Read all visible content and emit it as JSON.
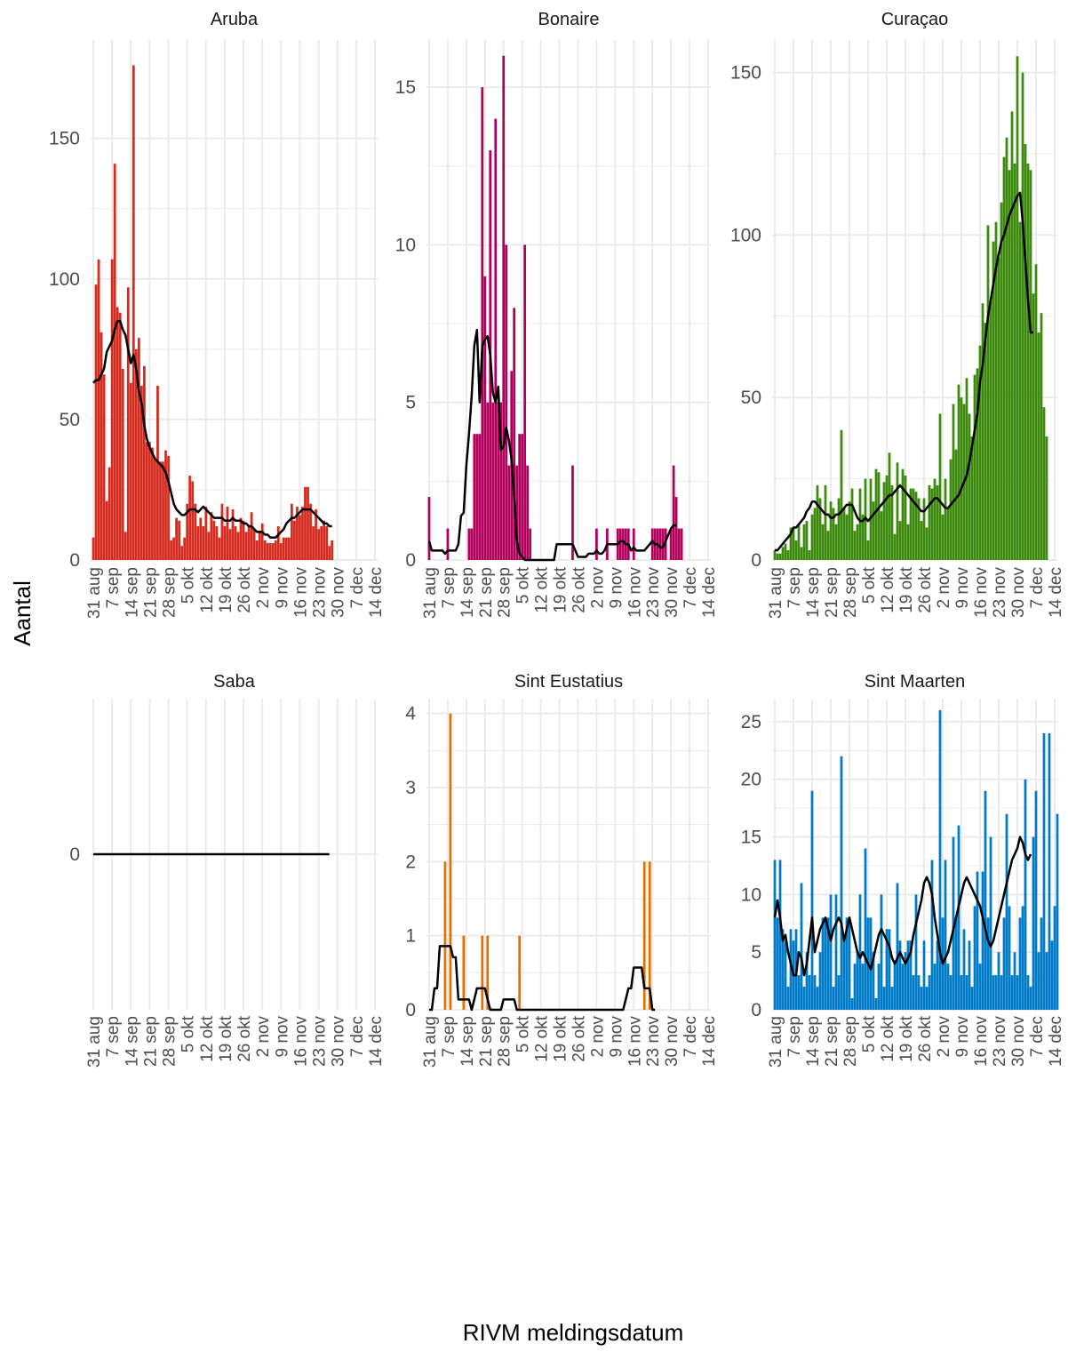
{
  "chart_data": {
    "type": "bar",
    "xlabel": "RIVM meldingsdatum",
    "ylabel": "Aantal",
    "x_ticks": [
      "31 aug",
      "7 sep",
      "14 sep",
      "21 sep",
      "28 sep",
      "5 okt",
      "12 okt",
      "19 okt",
      "26 okt",
      "2 nov",
      "9 nov",
      "16 nov",
      "23 nov",
      "30 nov",
      "7 dec",
      "14 dec"
    ],
    "x_start": "2020-08-31",
    "line_color": "#000000",
    "panels": [
      {
        "name": "Aruba",
        "color": "#d52b1e",
        "ylim": [
          0,
          185
        ],
        "yticks": [
          0,
          50,
          100,
          150
        ],
        "values": [
          8,
          98,
          107,
          81,
          66,
          21,
          33,
          107,
          141,
          90,
          88,
          68,
          10,
          97,
          63,
          176,
          75,
          79,
          62,
          69,
          42,
          42,
          40,
          36,
          62,
          35,
          35,
          39,
          37,
          7,
          8,
          15,
          14,
          5,
          8,
          20,
          30,
          28,
          20,
          12,
          15,
          12,
          19,
          10,
          17,
          14,
          12,
          8,
          20,
          12,
          19,
          11,
          18,
          12,
          10,
          15,
          14,
          10,
          12,
          17,
          11,
          7,
          10,
          13,
          7,
          6,
          6,
          6,
          7,
          12,
          6,
          8,
          8,
          8,
          20,
          14,
          19,
          16,
          19,
          26,
          26,
          20,
          12,
          18,
          11,
          12,
          14,
          12,
          5,
          7
        ],
        "trend": [
          63,
          64,
          64,
          66,
          68,
          74,
          76,
          78,
          82,
          85,
          85,
          82,
          80,
          75,
          70,
          73,
          68,
          60,
          56,
          48,
          43,
          40,
          38,
          36,
          35,
          34,
          33,
          31,
          28,
          24,
          20,
          18,
          17,
          16,
          16,
          17,
          18,
          18,
          18,
          17,
          18,
          19,
          18,
          17,
          16,
          15,
          15,
          15,
          15,
          14,
          14,
          14,
          15,
          14,
          14,
          14,
          13,
          13,
          12,
          12,
          11,
          10,
          10,
          10,
          9,
          9,
          8,
          8,
          8,
          9,
          10,
          11,
          13,
          14,
          15,
          15,
          16,
          17,
          18,
          18,
          18,
          18,
          17,
          16,
          15,
          14,
          13,
          13,
          12,
          12
        ]
      },
      {
        "name": "Bonaire",
        "color": "#b0005c",
        "ylim": [
          0,
          16.5
        ],
        "yticks": [
          0,
          5,
          10,
          15
        ],
        "values": [
          2,
          0,
          0,
          0,
          0,
          0,
          0,
          1,
          0,
          0,
          0,
          0,
          0,
          0,
          0,
          1,
          1,
          4,
          4,
          4,
          15,
          9,
          5,
          13,
          5,
          14,
          5,
          5,
          16,
          10,
          3,
          6,
          8,
          3,
          4,
          4,
          10,
          3,
          1,
          0,
          0,
          0,
          0,
          0,
          0,
          0,
          0,
          0,
          0,
          0,
          0,
          0,
          0,
          0,
          3,
          0,
          0,
          0,
          0,
          0,
          0,
          0,
          0,
          1,
          0,
          0,
          0,
          1,
          0,
          0,
          0,
          1,
          1,
          1,
          1,
          1,
          0,
          1,
          0,
          0,
          0,
          0,
          0,
          0,
          1,
          1,
          1,
          1,
          1,
          1,
          0,
          1,
          3,
          2,
          1,
          1
        ],
        "trend": [
          0.6,
          0.3,
          0.3,
          0.3,
          0.3,
          0.3,
          0.2,
          0.3,
          0.3,
          0.3,
          0.3,
          0.5,
          1.4,
          1.5,
          3.0,
          4.0,
          5.2,
          6.8,
          7.3,
          5.0,
          6.8,
          7.0,
          7.1,
          6.5,
          5.3,
          5.0,
          5.5,
          3.5,
          3.6,
          4.2,
          3.8,
          3.2,
          2.0,
          0.6,
          0.2,
          0.1,
          0,
          0,
          0,
          0,
          0,
          0,
          0,
          0,
          0,
          0,
          0,
          0,
          0.5,
          0.5,
          0.5,
          0.5,
          0.5,
          0.5,
          0.5,
          0.3,
          0.1,
          0.1,
          0.1,
          0.1,
          0.2,
          0.2,
          0.2,
          0.3,
          0.2,
          0.2,
          0.3,
          0.5,
          0.5,
          0.5,
          0.5,
          0.5,
          0.6,
          0.6,
          0.5,
          0.5,
          0.3,
          0.4,
          0.3,
          0.3,
          0.3,
          0.3,
          0.4,
          0.5,
          0.6,
          0.5,
          0.5,
          0.4,
          0.4,
          0.6,
          0.8,
          1.0,
          1.1,
          1.1
        ]
      },
      {
        "name": "Curaçao",
        "color": "#3d8b0e",
        "ylim": [
          0,
          160
        ],
        "yticks": [
          0,
          50,
          100,
          150
        ],
        "values": [
          3,
          2,
          2,
          4,
          5,
          3,
          10,
          10,
          6,
          11,
          4,
          11,
          12,
          3,
          14,
          16,
          23,
          19,
          11,
          23,
          9,
          18,
          16,
          11,
          19,
          40,
          16,
          14,
          18,
          22,
          9,
          11,
          22,
          14,
          25,
          6,
          25,
          18,
          28,
          27,
          15,
          24,
          26,
          33,
          23,
          8,
          30,
          12,
          28,
          26,
          11,
          22,
          22,
          21,
          19,
          12,
          19,
          10,
          23,
          22,
          25,
          23,
          45,
          14,
          25,
          16,
          31,
          48,
          34,
          54,
          50,
          48,
          56,
          45,
          38,
          57,
          59,
          66,
          79,
          73,
          103,
          80,
          98,
          104,
          93,
          110,
          124,
          130,
          120,
          138,
          122,
          155,
          104,
          150,
          128,
          122,
          120,
          82,
          91,
          70,
          76,
          47,
          38
        ],
        "trend": [
          3,
          3,
          4,
          5,
          6,
          7,
          8,
          10,
          10,
          11,
          12,
          13,
          15,
          16,
          18,
          18,
          17,
          16,
          15,
          14,
          14,
          13,
          13,
          14,
          14,
          15,
          16,
          17,
          17,
          17,
          15,
          13,
          12,
          12,
          13,
          12,
          13,
          14,
          15,
          16,
          17,
          18,
          19,
          20,
          20,
          21,
          22,
          23,
          22,
          21,
          20,
          19,
          18,
          17,
          16,
          15,
          15,
          16,
          17,
          18,
          19,
          19,
          18,
          17,
          16,
          16,
          17,
          18,
          19,
          20,
          22,
          24,
          26,
          30,
          35,
          40,
          45,
          55,
          60,
          68,
          75,
          80,
          85,
          90,
          94,
          98,
          100,
          103,
          106,
          108,
          110,
          112,
          113,
          104,
          92,
          80,
          70,
          70
        ]
      },
      {
        "name": "Saba",
        "color": "#f5deb3",
        "ylim": [
          -1,
          1
        ],
        "yticks": [
          0
        ],
        "values": [
          0,
          0,
          0,
          0,
          0,
          0,
          0,
          0,
          0,
          0,
          0,
          0,
          0,
          0,
          0,
          0,
          0,
          0,
          0,
          0,
          0,
          0,
          0,
          0,
          0,
          0,
          0,
          0,
          0,
          0,
          0,
          0,
          0,
          0,
          0,
          0,
          0,
          0,
          0,
          0,
          0,
          0,
          0,
          0,
          0,
          0,
          0,
          0,
          0,
          0,
          0,
          0,
          0,
          0,
          0,
          0,
          0,
          0,
          0,
          0,
          0,
          0,
          0,
          0,
          0,
          0,
          0,
          0,
          0,
          0,
          0,
          0,
          0,
          0,
          0,
          0,
          0,
          0,
          0,
          0,
          0,
          0,
          0,
          0,
          0,
          0,
          0,
          0,
          0,
          0,
          0,
          0
        ],
        "trend": [
          0,
          0,
          0,
          0,
          0,
          0,
          0,
          0,
          0,
          0,
          0,
          0,
          0,
          0,
          0,
          0,
          0,
          0,
          0,
          0,
          0,
          0,
          0,
          0,
          0,
          0,
          0,
          0,
          0,
          0,
          0,
          0,
          0,
          0,
          0,
          0,
          0,
          0,
          0,
          0,
          0,
          0,
          0,
          0,
          0,
          0,
          0,
          0,
          0,
          0,
          0,
          0,
          0,
          0,
          0,
          0,
          0,
          0,
          0,
          0,
          0,
          0,
          0,
          0,
          0,
          0,
          0,
          0,
          0,
          0,
          0,
          0,
          0,
          0,
          0,
          0,
          0,
          0,
          0,
          0,
          0,
          0,
          0,
          0,
          0,
          0,
          0,
          0,
          0
        ]
      },
      {
        "name": "Sint Eustatius",
        "color": "#e17000",
        "ylim": [
          0,
          4.2
        ],
        "yticks": [
          0,
          1,
          2,
          3,
          4
        ],
        "values": [
          0,
          0,
          0,
          0,
          0,
          0,
          2,
          0,
          4,
          0,
          0,
          0,
          0,
          1,
          0,
          0,
          0,
          0,
          0,
          0,
          1,
          0,
          1,
          0,
          0,
          0,
          0,
          0,
          0,
          0,
          0,
          0,
          0,
          0,
          1,
          0,
          0,
          0,
          0,
          0,
          0,
          0,
          0,
          0,
          0,
          0,
          0,
          0,
          0,
          0,
          0,
          0,
          0,
          0,
          0,
          0,
          0,
          0,
          0,
          0,
          0,
          0,
          0,
          0,
          0,
          0,
          0,
          0,
          0,
          0,
          0,
          0,
          0,
          0,
          0,
          0,
          0,
          0,
          0,
          0,
          0,
          2,
          0,
          2,
          0,
          0,
          0,
          0,
          0,
          0
        ],
        "trend": [
          0,
          0,
          0.29,
          0.29,
          0.86,
          0.86,
          0.86,
          0.86,
          0.86,
          0.71,
          0.71,
          0.14,
          0.14,
          0.14,
          0.14,
          0.14,
          0,
          0.14,
          0.29,
          0.29,
          0.29,
          0.29,
          0.14,
          0,
          0,
          0,
          0,
          0,
          0.14,
          0.14,
          0.14,
          0.14,
          0.14,
          0,
          0,
          0,
          0,
          0,
          0,
          0,
          0,
          0,
          0,
          0,
          0,
          0,
          0,
          0,
          0,
          0,
          0,
          0,
          0,
          0,
          0,
          0,
          0,
          0,
          0,
          0,
          0,
          0,
          0,
          0,
          0,
          0,
          0,
          0,
          0,
          0,
          0,
          0,
          0,
          0,
          0.14,
          0.29,
          0.29,
          0.57,
          0.57,
          0.57,
          0.57,
          0.29,
          0.29,
          0.29,
          0,
          0
        ]
      },
      {
        "name": "Sint Maarten",
        "color": "#007bc7",
        "ylim": [
          0,
          27
        ],
        "yticks": [
          0,
          5,
          10,
          15,
          20,
          25
        ],
        "values": [
          13,
          8,
          13,
          7,
          6,
          2,
          7,
          6,
          7,
          3,
          11,
          2,
          5,
          3,
          19,
          3,
          2,
          5,
          8,
          8,
          8,
          10,
          2,
          10,
          3,
          22,
          6,
          8,
          8,
          1,
          4,
          5,
          10,
          4,
          14,
          8,
          8,
          5,
          1,
          4,
          10,
          2,
          7,
          7,
          2,
          4,
          11,
          6,
          4,
          5,
          6,
          6,
          3,
          10,
          3,
          2,
          6,
          2,
          3,
          13,
          4,
          6,
          26,
          8,
          13,
          4,
          3,
          15,
          8,
          16,
          3,
          7,
          3,
          6,
          2,
          9,
          12,
          4,
          12,
          19,
          8,
          15,
          3,
          3,
          5,
          3,
          8,
          17,
          9,
          3,
          5,
          3,
          8,
          9,
          20,
          3,
          2,
          15,
          19,
          5,
          8,
          24,
          5,
          24,
          6,
          9,
          17
        ],
        "trend": [
          8.0,
          9.5,
          8.0,
          6.0,
          6.5,
          5.0,
          4.0,
          3.0,
          3.0,
          5.0,
          4.5,
          3.0,
          4.0,
          6.0,
          8.0,
          5.0,
          6.0,
          7.0,
          7.5,
          8.0,
          7.0,
          6.0,
          7.0,
          7.5,
          8.0,
          7.5,
          6.0,
          7.0,
          8.0,
          7.0,
          6.0,
          5.0,
          4.5,
          5.0,
          4.5,
          4.0,
          3.5,
          4.5,
          5.5,
          6.5,
          7.0,
          6.5,
          6.0,
          5.5,
          4.5,
          4.0,
          4.5,
          5.0,
          4.5,
          4.0,
          4.5,
          5.0,
          6.5,
          7.5,
          8.5,
          9.5,
          11.0,
          11.5,
          11.0,
          10.0,
          8.0,
          6.5,
          5.0,
          4.0,
          4.5,
          5.0,
          6.0,
          7.0,
          8.0,
          9.0,
          10.0,
          11.0,
          11.5,
          11.0,
          10.5,
          10.0,
          9.5,
          9.0,
          8.0,
          7.0,
          6.0,
          5.5,
          6.0,
          7.0,
          8.0,
          9.0,
          10.0,
          11.0,
          12.0,
          13.0,
          13.5,
          14.0,
          15.0,
          14.5,
          13.5,
          13.0,
          13.5
        ]
      }
    ]
  }
}
